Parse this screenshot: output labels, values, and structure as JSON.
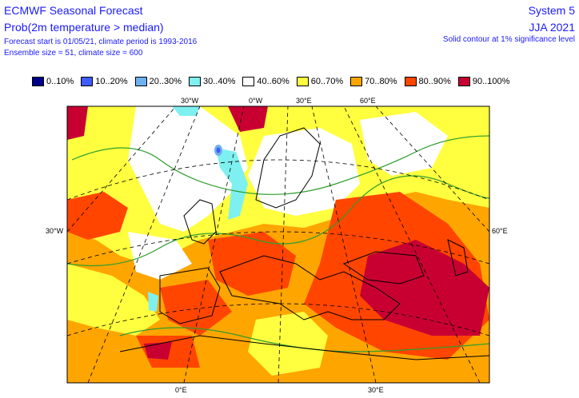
{
  "header": {
    "title": "ECMWF Seasonal Forecast",
    "subtitle": "Prob(2m temperature > median)",
    "line3": "Forecast start is 01/05/21, climate period is 1993-2016",
    "line4": "Ensemble size = 51, climate size = 600",
    "system": "System 5",
    "period": "JJA 2021",
    "significance_note": "Solid contour at 1% significance level"
  },
  "legend": [
    {
      "label": "0..10%",
      "color": "#00008b"
    },
    {
      "label": "10..20%",
      "color": "#3f5cff"
    },
    {
      "label": "20..30%",
      "color": "#6fb0f0"
    },
    {
      "label": "30..40%",
      "color": "#7ff0f0"
    },
    {
      "label": "40..60%",
      "color": "#ffffff"
    },
    {
      "label": "60..70%",
      "color": "#ffff3f"
    },
    {
      "label": "70..80%",
      "color": "#ffa500"
    },
    {
      "label": "80..90%",
      "color": "#ff4500"
    },
    {
      "label": "90..100%",
      "color": "#c80032"
    }
  ],
  "map_labels": {
    "top_30w": "30°W",
    "top_0w": "0°W",
    "top_30e": "30°E",
    "top_60e": "60°E",
    "left_30w": "30°W",
    "right_60e": "60°E",
    "bottom_0e": "0°E",
    "bottom_30e": "30°E"
  }
}
